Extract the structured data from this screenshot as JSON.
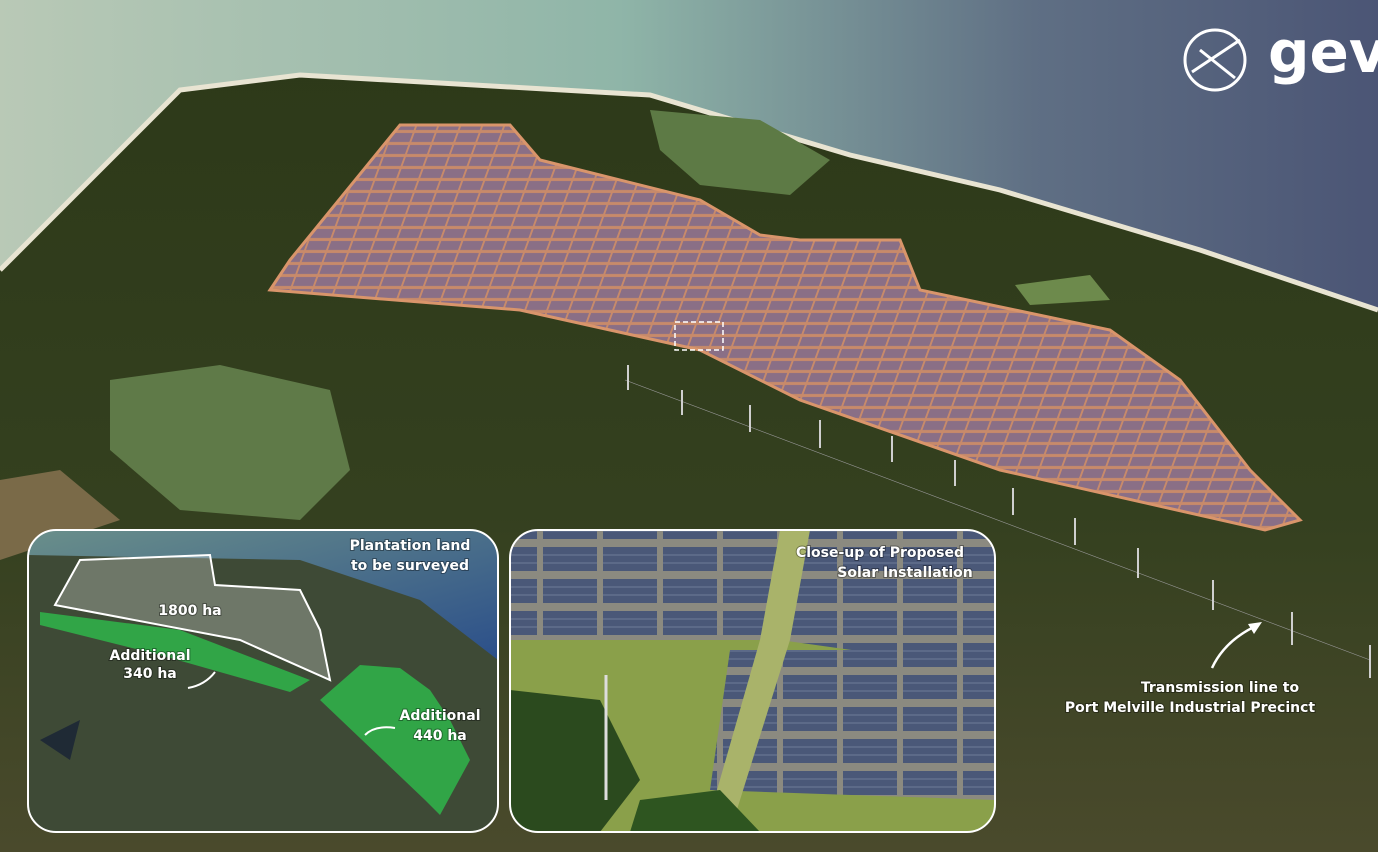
{
  "logo": "gev",
  "main": {
    "annotation": [
      "Transmission line to",
      "Port Melville Industrial Precinct"
    ]
  },
  "inset_map": {
    "title": [
      "Plantation land",
      "to be surveyed"
    ],
    "areas": [
      {
        "label": [
          "1800 ha"
        ]
      },
      {
        "label": [
          "Additional",
          "340 ha"
        ]
      },
      {
        "label": [
          "Additional",
          "440 ha"
        ]
      }
    ]
  },
  "inset_closeup": {
    "title": [
      "Close-up of Proposed",
      "Solar Installation"
    ]
  }
}
